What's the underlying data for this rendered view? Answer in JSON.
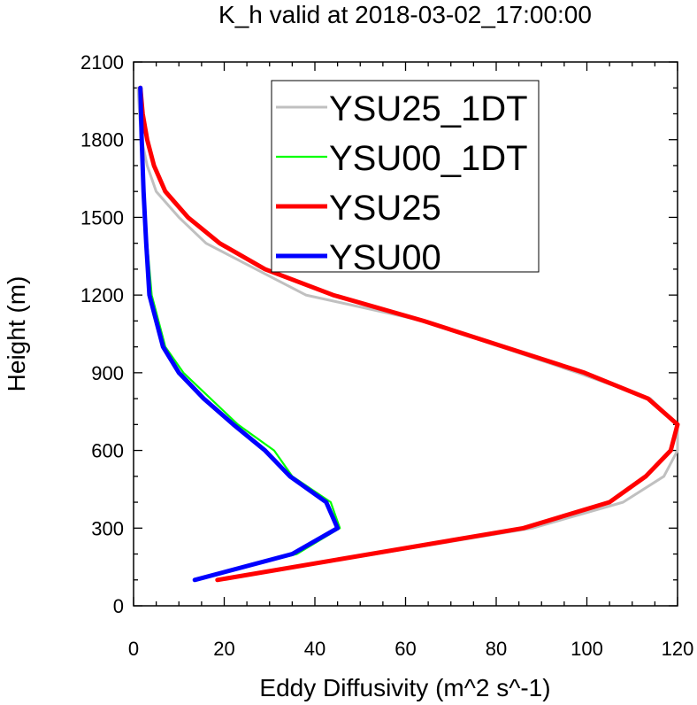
{
  "chart_data": {
    "type": "line",
    "title": "K_h valid at 2018-03-02_17:00:00",
    "xlabel": "Eddy Diffusivity (m^2 s^-1)",
    "ylabel": "Height (m)",
    "xlim": [
      0,
      120
    ],
    "ylim": [
      0,
      2100
    ],
    "xticks": [
      0,
      20,
      40,
      60,
      80,
      100,
      120
    ],
    "yticks": [
      0,
      300,
      600,
      900,
      1200,
      1500,
      1800,
      2100
    ],
    "grid": false,
    "legend_position": "top-right",
    "series": [
      {
        "name": "YSU25_1DT",
        "color": "#c0c0c0",
        "points": [
          [
            18.5,
            100
          ],
          [
            88,
            300
          ],
          [
            108,
            400
          ],
          [
            117,
            500
          ],
          [
            120,
            600
          ],
          [
            120,
            700
          ],
          [
            114,
            800
          ],
          [
            98,
            900
          ],
          [
            64,
            1100
          ],
          [
            38,
            1200
          ],
          [
            27,
            1300
          ],
          [
            16,
            1400
          ],
          [
            10,
            1500
          ],
          [
            5,
            1600
          ],
          [
            3,
            1700
          ],
          [
            1.8,
            1800
          ],
          [
            1.3,
            1900
          ],
          [
            1.0,
            2000
          ]
        ]
      },
      {
        "name": "YSU00_1DT",
        "color": "#00ff00",
        "points": [
          [
            13.5,
            100
          ],
          [
            36,
            200
          ],
          [
            45.5,
            300
          ],
          [
            43.5,
            400
          ],
          [
            35,
            500
          ],
          [
            31,
            600
          ],
          [
            23,
            700
          ],
          [
            17,
            800
          ],
          [
            11,
            900
          ],
          [
            7,
            1000
          ],
          [
            4,
            1200
          ],
          [
            3,
            1400
          ],
          [
            2.3,
            1600
          ],
          [
            1.8,
            1800
          ],
          [
            1.3,
            2000
          ]
        ]
      },
      {
        "name": "YSU25",
        "color": "#ff0000",
        "points": [
          [
            18.5,
            100
          ],
          [
            86,
            300
          ],
          [
            105,
            400
          ],
          [
            113,
            500
          ],
          [
            118.5,
            600
          ],
          [
            120,
            700
          ],
          [
            113.5,
            800
          ],
          [
            99.5,
            900
          ],
          [
            64,
            1100
          ],
          [
            44,
            1200
          ],
          [
            29,
            1300
          ],
          [
            19,
            1400
          ],
          [
            12,
            1500
          ],
          [
            7,
            1600
          ],
          [
            4.5,
            1700
          ],
          [
            3,
            1800
          ],
          [
            2,
            1900
          ],
          [
            1.5,
            2000
          ]
        ]
      },
      {
        "name": "YSU00",
        "color": "#0000ff",
        "points": [
          [
            13.5,
            100
          ],
          [
            35,
            200
          ],
          [
            45,
            300
          ],
          [
            42.5,
            400
          ],
          [
            34.5,
            500
          ],
          [
            29,
            600
          ],
          [
            22,
            700
          ],
          [
            15.5,
            800
          ],
          [
            10,
            900
          ],
          [
            6.5,
            1000
          ],
          [
            3.5,
            1200
          ],
          [
            2.8,
            1400
          ],
          [
            2.2,
            1600
          ],
          [
            1.8,
            1800
          ],
          [
            1.5,
            2000
          ]
        ]
      }
    ]
  }
}
